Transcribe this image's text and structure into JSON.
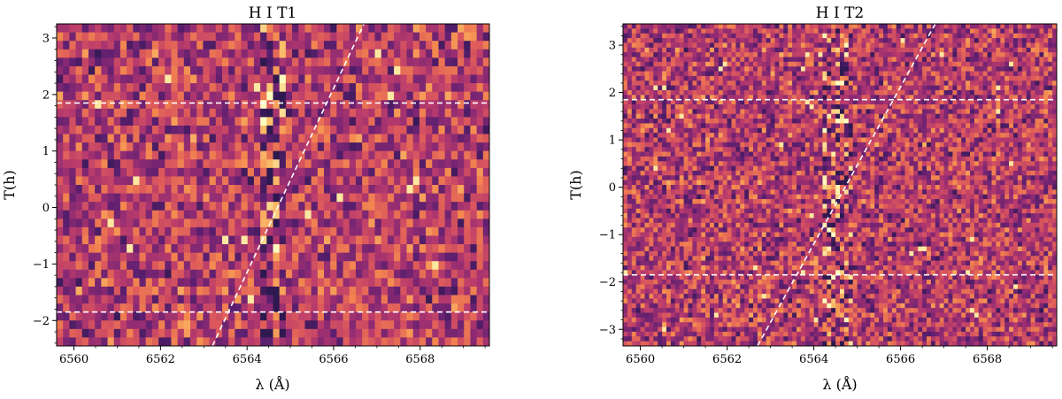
{
  "chart_data": [
    {
      "type": "heatmap",
      "title": "H I T1",
      "xlabel": "λ (Å)",
      "ylabel": "T(h)",
      "xlim": [
        6559.6,
        6569.6
      ],
      "ylim": [
        -2.45,
        3.25
      ],
      "xticks": [
        6560,
        6562,
        6564,
        6566,
        6568
      ],
      "xtick_labels": [
        "6560",
        "6562",
        "6564",
        "6566",
        "6568"
      ],
      "yticks": [
        -2,
        -1,
        0,
        1,
        2,
        3
      ],
      "ytick_labels": [
        "−2",
        "−1",
        "0",
        "1",
        "2",
        "3"
      ],
      "colormap": [
        "#2e1850",
        "#5b1f6f",
        "#8c2a73",
        "#b93b6c",
        "#de5b5b",
        "#f3874f",
        "#fbc06a",
        "#fcfdbf"
      ],
      "grid": false,
      "legend": false,
      "n_columns": 68,
      "n_rows": 38,
      "hlines": [
        1.85,
        -1.85
      ],
      "planet_trail": {
        "x": [
          6563.2,
          6566.7
        ],
        "y": [
          -2.45,
          3.25
        ]
      },
      "feature_wavelength": 6564.6,
      "seed": 17
    },
    {
      "type": "heatmap",
      "title": "H I T2",
      "xlabel": "λ (Å)",
      "ylabel": "T(h)",
      "xlim": [
        6559.6,
        6569.6
      ],
      "ylim": [
        -3.35,
        3.45
      ],
      "xticks": [
        6560,
        6562,
        6564,
        6566,
        6568
      ],
      "xtick_labels": [
        "6560",
        "6562",
        "6564",
        "6566",
        "6568"
      ],
      "yticks": [
        -3,
        -2,
        -1,
        0,
        1,
        2,
        3
      ],
      "ytick_labels": [
        "−3",
        "−2",
        "−1",
        "0",
        "1",
        "2",
        "3"
      ],
      "colormap": [
        "#2e1850",
        "#5b1f6f",
        "#8c2a73",
        "#b93b6c",
        "#de5b5b",
        "#f3874f",
        "#fbc06a",
        "#fcfdbf"
      ],
      "grid": false,
      "legend": false,
      "n_columns": 100,
      "n_rows": 68,
      "hlines": [
        1.85,
        -1.85
      ],
      "planet_trail": {
        "x": [
          6562.7,
          6566.8
        ],
        "y": [
          -3.35,
          3.45
        ]
      },
      "feature_wavelength": 6564.55,
      "seed": 53
    }
  ]
}
